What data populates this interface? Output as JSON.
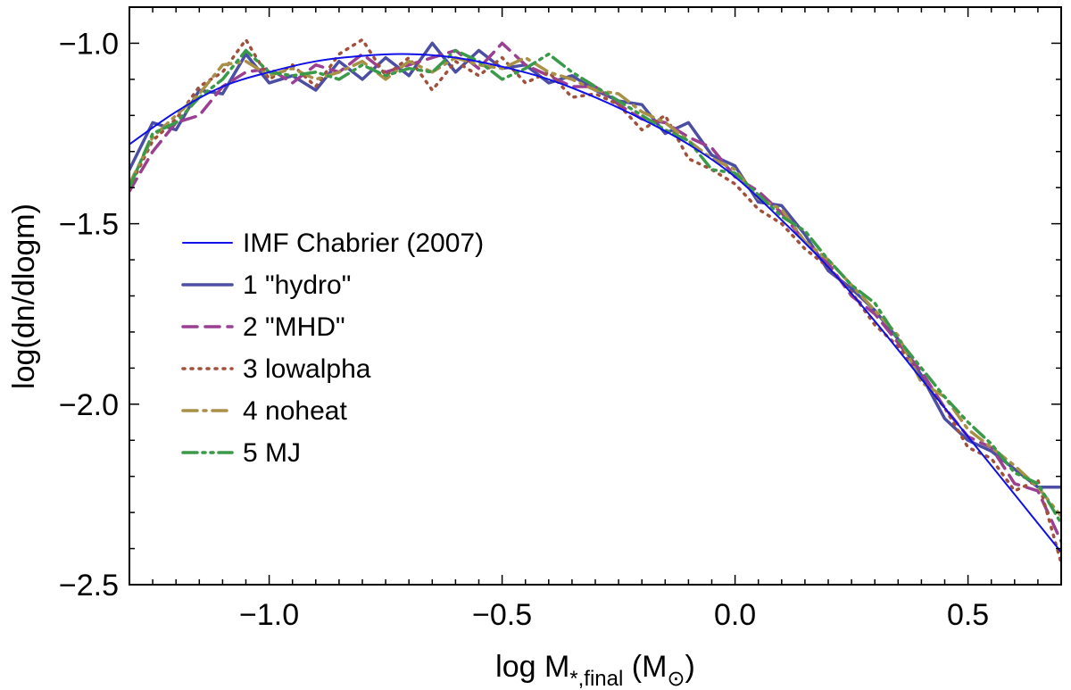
{
  "chart_data": {
    "type": "line",
    "title": "",
    "xlabel": {
      "main": "log M",
      "sub": "*,final",
      "unit_open": " (M",
      "unit_sub": "⊙",
      "unit_close": ")"
    },
    "ylabel": "log(dn/dlogm)",
    "xlim": [
      -1.3,
      0.7
    ],
    "ylim": [
      -2.5,
      -0.9
    ],
    "xticks": [
      -1.0,
      -0.5,
      0.0,
      0.5
    ],
    "xtick_labels": [
      "−1.0",
      "−0.5",
      "0.0",
      "0.5"
    ],
    "yticks": [
      -1.0,
      -1.5,
      -2.0,
      -2.5
    ],
    "ytick_labels": [
      "−1.0",
      "−1.5",
      "−2.0",
      "−2.5"
    ],
    "legend_position": "center-left",
    "series": [
      {
        "name": "IMF Chabrier (2007)",
        "style": "solid-thin",
        "color": "#1010e8",
        "x": [
          -1.3,
          -1.2,
          -1.1,
          -1.0,
          -0.9,
          -0.8,
          -0.7,
          -0.6,
          -0.5,
          -0.4,
          -0.3,
          -0.2,
          -0.1,
          0.0,
          0.1,
          0.2,
          0.3,
          0.4,
          0.5,
          0.6,
          0.7
        ],
        "y": [
          -1.28,
          -1.19,
          -1.12,
          -1.08,
          -1.05,
          -1.035,
          -1.03,
          -1.04,
          -1.065,
          -1.1,
          -1.15,
          -1.21,
          -1.28,
          -1.37,
          -1.49,
          -1.62,
          -1.77,
          -1.93,
          -2.09,
          -2.25,
          -2.41
        ]
      },
      {
        "name": "1 \"hydro\"",
        "style": "solid-thick",
        "color": "#4b4ea3",
        "x": [
          -1.3,
          -1.25,
          -1.2,
          -1.15,
          -1.1,
          -1.05,
          -1.0,
          -0.95,
          -0.9,
          -0.85,
          -0.8,
          -0.75,
          -0.7,
          -0.65,
          -0.6,
          -0.55,
          -0.5,
          -0.45,
          -0.4,
          -0.35,
          -0.3,
          -0.25,
          -0.2,
          -0.15,
          -0.1,
          -0.05,
          0.0,
          0.05,
          0.1,
          0.15,
          0.2,
          0.25,
          0.3,
          0.35,
          0.4,
          0.45,
          0.5,
          0.55,
          0.6,
          0.65,
          0.7
        ],
        "y": [
          -1.35,
          -1.22,
          -1.24,
          -1.13,
          -1.14,
          -1.03,
          -1.11,
          -1.09,
          -1.13,
          -1.05,
          -1.1,
          -1.04,
          -1.09,
          -1.0,
          -1.08,
          -1.02,
          -1.07,
          -1.06,
          -1.11,
          -1.09,
          -1.13,
          -1.16,
          -1.17,
          -1.25,
          -1.22,
          -1.31,
          -1.34,
          -1.44,
          -1.45,
          -1.53,
          -1.63,
          -1.68,
          -1.74,
          -1.82,
          -1.92,
          -2.04,
          -2.1,
          -2.13,
          -2.18,
          -2.23,
          -2.23
        ]
      },
      {
        "name": "2 \"MHD\"",
        "style": "dashed",
        "color": "#9a3f92",
        "x": [
          -1.3,
          -1.25,
          -1.2,
          -1.15,
          -1.1,
          -1.05,
          -1.0,
          -0.95,
          -0.9,
          -0.85,
          -0.8,
          -0.75,
          -0.7,
          -0.65,
          -0.6,
          -0.55,
          -0.5,
          -0.45,
          -0.4,
          -0.35,
          -0.3,
          -0.25,
          -0.2,
          -0.15,
          -0.1,
          -0.05,
          0.0,
          0.05,
          0.1,
          0.15,
          0.2,
          0.25,
          0.3,
          0.35,
          0.4,
          0.45,
          0.5,
          0.55,
          0.6,
          0.65,
          0.7
        ],
        "y": [
          -1.41,
          -1.3,
          -1.22,
          -1.2,
          -1.12,
          -1.08,
          -1.07,
          -1.11,
          -1.06,
          -1.08,
          -1.03,
          -1.08,
          -1.06,
          -1.04,
          -1.02,
          -1.07,
          -1.0,
          -1.06,
          -1.09,
          -1.12,
          -1.12,
          -1.17,
          -1.21,
          -1.22,
          -1.26,
          -1.29,
          -1.37,
          -1.41,
          -1.47,
          -1.55,
          -1.61,
          -1.7,
          -1.75,
          -1.83,
          -1.91,
          -2.01,
          -2.09,
          -2.12,
          -2.22,
          -2.24,
          -2.38
        ]
      },
      {
        "name": "3 lowalpha",
        "style": "dotted",
        "color": "#a0513c",
        "x": [
          -1.3,
          -1.25,
          -1.2,
          -1.15,
          -1.1,
          -1.05,
          -1.0,
          -0.95,
          -0.9,
          -0.85,
          -0.8,
          -0.75,
          -0.7,
          -0.65,
          -0.6,
          -0.55,
          -0.5,
          -0.45,
          -0.4,
          -0.35,
          -0.3,
          -0.25,
          -0.2,
          -0.15,
          -0.1,
          -0.05,
          0.0,
          0.05,
          0.1,
          0.15,
          0.2,
          0.25,
          0.3,
          0.35,
          0.4,
          0.45,
          0.5,
          0.55,
          0.6,
          0.65,
          0.7
        ],
        "y": [
          -1.4,
          -1.27,
          -1.21,
          -1.12,
          -1.08,
          -0.99,
          -1.1,
          -1.06,
          -1.12,
          -1.03,
          -0.99,
          -1.09,
          -1.04,
          -1.13,
          -1.05,
          -1.09,
          -1.04,
          -1.11,
          -1.08,
          -1.15,
          -1.14,
          -1.17,
          -1.24,
          -1.2,
          -1.32,
          -1.35,
          -1.39,
          -1.46,
          -1.5,
          -1.57,
          -1.62,
          -1.69,
          -1.78,
          -1.84,
          -1.93,
          -2.01,
          -2.12,
          -2.15,
          -2.24,
          -2.21,
          -2.44
        ]
      },
      {
        "name": "4 noheat",
        "style": "dash-dot",
        "color": "#a89147",
        "x": [
          -1.3,
          -1.25,
          -1.2,
          -1.15,
          -1.1,
          -1.05,
          -1.0,
          -0.95,
          -0.9,
          -0.85,
          -0.8,
          -0.75,
          -0.7,
          -0.65,
          -0.6,
          -0.55,
          -0.5,
          -0.45,
          -0.4,
          -0.35,
          -0.3,
          -0.25,
          -0.2,
          -0.15,
          -0.1,
          -0.05,
          0.0,
          0.05,
          0.1,
          0.15,
          0.2,
          0.25,
          0.3,
          0.35,
          0.4,
          0.45,
          0.5,
          0.55,
          0.6,
          0.65,
          0.7
        ],
        "y": [
          -1.39,
          -1.26,
          -1.2,
          -1.14,
          -1.06,
          -1.05,
          -1.09,
          -1.07,
          -1.1,
          -1.08,
          -1.05,
          -1.1,
          -1.05,
          -1.08,
          -1.04,
          -1.06,
          -1.07,
          -1.04,
          -1.08,
          -1.1,
          -1.13,
          -1.14,
          -1.19,
          -1.22,
          -1.27,
          -1.32,
          -1.35,
          -1.43,
          -1.46,
          -1.55,
          -1.6,
          -1.67,
          -1.74,
          -1.81,
          -1.94,
          -1.98,
          -2.07,
          -2.12,
          -2.17,
          -2.23,
          -2.31
        ]
      },
      {
        "name": "5 MJ",
        "style": "dash-dot-dot",
        "color": "#3a9a4a",
        "x": [
          -1.3,
          -1.25,
          -1.2,
          -1.15,
          -1.1,
          -1.05,
          -1.0,
          -0.95,
          -0.9,
          -0.85,
          -0.8,
          -0.75,
          -0.7,
          -0.65,
          -0.6,
          -0.55,
          -0.5,
          -0.45,
          -0.4,
          -0.35,
          -0.3,
          -0.25,
          -0.2,
          -0.15,
          -0.1,
          -0.05,
          0.0,
          0.05,
          0.1,
          0.15,
          0.2,
          0.25,
          0.3,
          0.35,
          0.4,
          0.45,
          0.5,
          0.55,
          0.6,
          0.65,
          0.7
        ],
        "y": [
          -1.4,
          -1.25,
          -1.22,
          -1.15,
          -1.1,
          -1.02,
          -1.08,
          -1.09,
          -1.08,
          -1.1,
          -1.06,
          -1.09,
          -1.07,
          -1.08,
          -1.02,
          -1.05,
          -1.1,
          -1.07,
          -1.03,
          -1.08,
          -1.12,
          -1.16,
          -1.2,
          -1.24,
          -1.27,
          -1.35,
          -1.36,
          -1.42,
          -1.48,
          -1.52,
          -1.6,
          -1.67,
          -1.72,
          -1.82,
          -1.9,
          -1.98,
          -2.05,
          -2.11,
          -2.19,
          -2.22,
          -2.33
        ]
      }
    ]
  }
}
